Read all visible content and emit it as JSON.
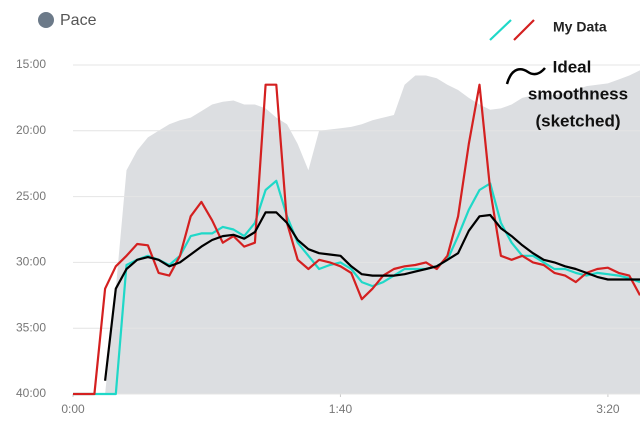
{
  "chart_data": {
    "type": "line",
    "x": [
      0,
      4,
      8,
      12,
      16,
      20,
      24,
      28,
      32,
      36,
      40,
      44,
      48,
      52,
      56,
      60,
      64,
      68,
      72,
      76,
      80,
      84,
      88,
      92,
      96,
      100,
      104,
      108,
      112,
      116,
      120,
      124,
      128,
      132,
      136,
      140,
      144,
      148,
      152,
      156,
      160,
      164,
      168,
      172,
      176,
      180,
      184,
      188,
      192,
      196,
      200,
      204,
      208,
      212
    ],
    "xlim": [
      0,
      212
    ],
    "xticks": [
      {
        "value": 0,
        "label": "0:00"
      },
      {
        "value": 100,
        "label": "1:40"
      },
      {
        "value": 200,
        "label": "3:20"
      }
    ],
    "ylim": [
      40,
      15
    ],
    "yticks": [
      {
        "value": 15,
        "label": "15:00"
      },
      {
        "value": 20,
        "label": "20:00"
      },
      {
        "value": 25,
        "label": "25:00"
      },
      {
        "value": 30,
        "label": "30:00"
      },
      {
        "value": 35,
        "label": "35:00"
      },
      {
        "value": 40,
        "label": "40:00"
      }
    ],
    "grid": true,
    "series": [
      {
        "name": "Pace",
        "fill": true,
        "color": "#dcdee1",
        "legend_color": "#6c7a89",
        "values": [
          40,
          40,
          40,
          40,
          32,
          23,
          21.5,
          20.5,
          20,
          19.5,
          19.2,
          19,
          18.5,
          18,
          17.8,
          17.7,
          18,
          18,
          18.3,
          19,
          19.5,
          21,
          23,
          20,
          19.9,
          19.8,
          19.7,
          19.5,
          19.2,
          19,
          18.8,
          16.5,
          15.8,
          15.8,
          16,
          16.5,
          16.9,
          17.5,
          18,
          18.4,
          18.3,
          18,
          17.5,
          17.3,
          17.2,
          17.3,
          17.1,
          16.9,
          16.6,
          16.5,
          16.4,
          16.1,
          15.8,
          15.4
        ]
      },
      {
        "color": "#1fd8c8",
        "values": [
          40,
          40,
          40,
          40,
          40,
          30.2,
          29.8,
          29.5,
          29.8,
          30.2,
          29.5,
          28,
          27.8,
          27.8,
          27.3,
          27.5,
          28,
          27,
          24.5,
          23.8,
          26.5,
          28.5,
          29.5,
          30.5,
          30.2,
          30,
          30.5,
          31.5,
          31.8,
          31.5,
          31,
          30.5,
          30.5,
          30.5,
          30.3,
          29.8,
          28,
          26,
          24.5,
          24,
          27,
          28.5,
          29.5,
          29.5,
          30,
          30.5,
          30.5,
          30.8,
          31,
          30.8,
          30.9,
          31,
          31.2,
          31.5
        ]
      },
      {
        "color": "#d42020",
        "values": [
          40,
          40,
          40,
          32,
          30.3,
          29.5,
          28.6,
          28.7,
          30.8,
          31,
          29.5,
          26.5,
          25.4,
          26.8,
          28.5,
          28,
          28.8,
          28.5,
          16.5,
          16.5,
          27,
          29.8,
          30.5,
          29.8,
          30,
          30.3,
          30.8,
          32.8,
          32,
          31,
          30.5,
          30.3,
          30.2,
          30,
          30.5,
          29.5,
          26.5,
          21,
          16.5,
          24.5,
          29.5,
          29.8,
          29.5,
          30,
          30.2,
          30.8,
          31,
          31.5,
          30.8,
          30.5,
          30.4,
          30.8,
          31,
          32.5
        ]
      },
      {
        "color": "#000000",
        "values": [
          null,
          null,
          null,
          39,
          32,
          30.5,
          29.8,
          29.6,
          29.8,
          30.3,
          30,
          29.4,
          28.8,
          28.3,
          28,
          27.9,
          28.2,
          27.7,
          26.2,
          26.2,
          27,
          28.3,
          29,
          29.3,
          29.4,
          29.5,
          30.3,
          30.9,
          31,
          31,
          31,
          30.9,
          30.7,
          30.5,
          30.3,
          29.8,
          29.3,
          27.6,
          26.5,
          26.4,
          27.4,
          28,
          28.7,
          29.3,
          29.8,
          30,
          30.3,
          30.5,
          30.8,
          31.1,
          31.3,
          31.3,
          31.3,
          31.3
        ]
      }
    ],
    "legend_label": "My Data",
    "annotation": [
      "Ideal",
      "smoothness",
      "(sketched)"
    ]
  }
}
